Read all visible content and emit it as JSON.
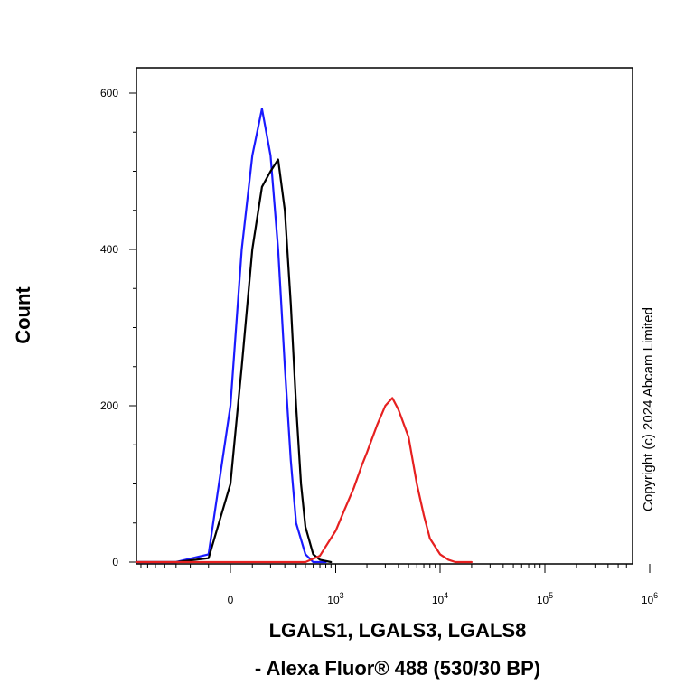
{
  "chart_data": {
    "type": "line",
    "x_scale": "biexponential",
    "ylim": [
      0,
      600
    ],
    "xlabel_lines": [
      "LGALS1, LGALS3, LGALS8",
      "- Alexa Fluor® 488 (530/30 BP)"
    ],
    "ylabel": "Count",
    "copyright": "Copyright (c) 2024 Abcam Limited",
    "y_ticks": [
      {
        "value": 0,
        "label": "0"
      },
      {
        "value": 200,
        "label": "200"
      },
      {
        "value": 400,
        "label": "400"
      },
      {
        "value": 600,
        "label": "600"
      }
    ],
    "x_ticks": [
      {
        "value": 0,
        "base": "0",
        "exp": ""
      },
      {
        "value": 1000,
        "base": "10",
        "exp": "3"
      },
      {
        "value": 10000,
        "base": "10",
        "exp": "4"
      },
      {
        "value": 100000,
        "base": "10",
        "exp": "5"
      },
      {
        "value": 1000000,
        "base": "10",
        "exp": "6"
      }
    ],
    "series": [
      {
        "color": "#1a1aff",
        "x": [
          -800,
          -300,
          -100,
          0,
          50,
          100,
          150,
          200,
          250,
          300,
          350,
          400,
          500,
          600,
          800
        ],
        "y": [
          0,
          0,
          10,
          200,
          400,
          520,
          580,
          520,
          400,
          250,
          130,
          50,
          10,
          0,
          0
        ]
      },
      {
        "color": "#000000",
        "x": [
          -800,
          -300,
          -100,
          0,
          50,
          100,
          150,
          200,
          250,
          300,
          350,
          400,
          450,
          500,
          600,
          700,
          900
        ],
        "y": [
          0,
          0,
          5,
          100,
          250,
          400,
          480,
          500,
          515,
          450,
          330,
          200,
          100,
          45,
          10,
          3,
          0
        ]
      },
      {
        "color": "#e62020",
        "x": [
          -800,
          500,
          700,
          800,
          1000,
          1200,
          1500,
          1800,
          2000,
          2500,
          3000,
          3500,
          4000,
          5000,
          6000,
          7000,
          8000,
          10000,
          12000,
          14000,
          20000
        ],
        "y": [
          0,
          0,
          8,
          20,
          40,
          65,
          95,
          125,
          140,
          175,
          200,
          210,
          195,
          160,
          100,
          60,
          30,
          10,
          3,
          0,
          0
        ]
      }
    ]
  }
}
